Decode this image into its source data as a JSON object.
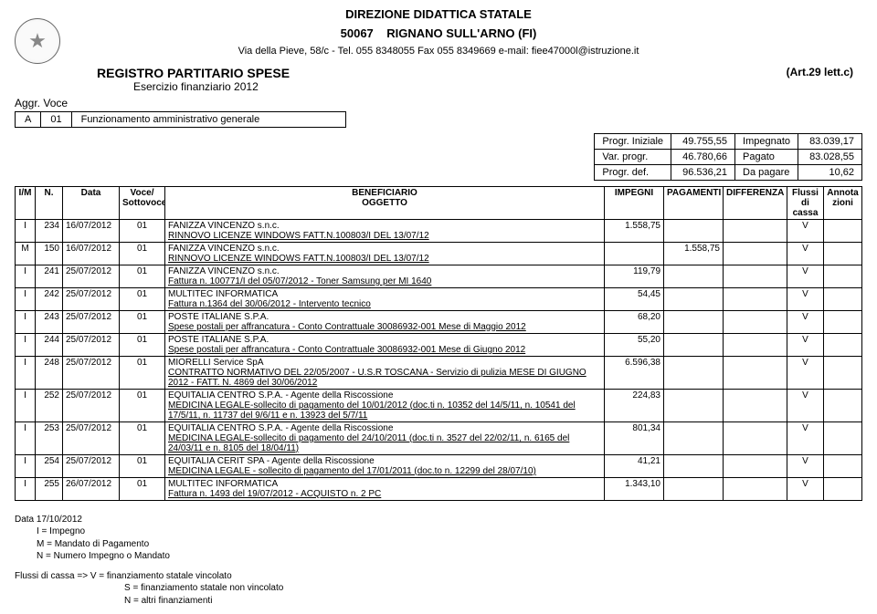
{
  "header": {
    "line1": "DIREZIONE DIDATTICA STATALE",
    "line2_code": "50067",
    "line2_place": "RIGNANO SULL'ARNO (FI)",
    "line3": "Via della Pieve, 58/c - Tel. 055 8348055 Fax 055 8349669 e-mail: fiee47000l@istruzione.it"
  },
  "registro": {
    "title": "REGISTRO PARTITARIO SPESE",
    "subtitle": "Esercizio finanziario 2012",
    "art": "(Art.29 lett.c)"
  },
  "aggr": {
    "label": "Aggr. Voce",
    "code_a": "A",
    "code_num": "01",
    "desc": "Funzionamento amministrativo generale"
  },
  "summary": {
    "rows": [
      {
        "l1": "Progr. Iniziale",
        "v1": "49.755,55",
        "l2": "Impegnato",
        "v2": "83.039,17"
      },
      {
        "l1": "Var. progr.",
        "v1": "46.780,66",
        "l2": "Pagato",
        "v2": "83.028,55"
      },
      {
        "l1": "Progr. def.",
        "v1": "96.536,21",
        "l2": "Da pagare",
        "v2": "10,62"
      }
    ]
  },
  "columns": {
    "im": "I/M",
    "n": "N.",
    "data": "Data",
    "voce": "Voce/\nSottovoce",
    "benef": "BENEFICIARIO\nOGGETTO",
    "imp": "IMPEGNI",
    "pag": "PAGAMENTI",
    "diff": "DIFFERENZA",
    "flussi": "Flussi di\ncassa",
    "annota": "Annota\nzioni"
  },
  "rows": [
    {
      "im": "I",
      "n": "234",
      "data": "16/07/2012",
      "voce": "01",
      "benef": "FANIZZA VINCENZO s.n.c.",
      "sub": "RINNOVO LICENZE WINDOWS FATT.N.100803/I DEL 13/07/12",
      "imp": "1.558,75",
      "pag": "",
      "diff": "",
      "flussi": "V"
    },
    {
      "im": "M",
      "n": "150",
      "data": "16/07/2012",
      "voce": "01",
      "benef": "FANIZZA VINCENZO s.n.c.",
      "sub": "RINNOVO LICENZE WINDOWS FATT.N.100803/I DEL 13/07/12",
      "imp": "",
      "pag": "1.558,75",
      "diff": "",
      "flussi": "V"
    },
    {
      "im": "I",
      "n": "241",
      "data": "25/07/2012",
      "voce": "01",
      "benef": "FANIZZA VINCENZO s.n.c.",
      "sub": "Fattura n. 100771/I del 05/07/2012 - Toner Samsung per MI 1640",
      "imp": "119,79",
      "pag": "",
      "diff": "",
      "flussi": "V"
    },
    {
      "im": "I",
      "n": "242",
      "data": "25/07/2012",
      "voce": "01",
      "benef": "MULTITEC INFORMATICA",
      "sub": "Fattura n.1364 del 30/06/2012 - Intervento tecnico",
      "imp": "54,45",
      "pag": "",
      "diff": "",
      "flussi": "V"
    },
    {
      "im": "I",
      "n": "243",
      "data": "25/07/2012",
      "voce": "01",
      "benef": "POSTE ITALIANE S.P.A.",
      "sub": "Spese postali per affrancatura - Conto Contrattuale 30086932-001 Mese di Maggio 2012",
      "imp": "68,20",
      "pag": "",
      "diff": "",
      "flussi": "V"
    },
    {
      "im": "I",
      "n": "244",
      "data": "25/07/2012",
      "voce": "01",
      "benef": "POSTE ITALIANE S.P.A.",
      "sub": "Spese postali per affrancatura - Conto Contrattuale 30086932-001 Mese di Giugno 2012",
      "imp": "55,20",
      "pag": "",
      "diff": "",
      "flussi": "V"
    },
    {
      "im": "I",
      "n": "248",
      "data": "25/07/2012",
      "voce": "01",
      "benef": "MIORELLI Service SpA",
      "sub": "CONTRATTO NORMATIVO DEL 22/05/2007 - U.S.R TOSCANA - Servizio di pulizia MESE DI GIUGNO 2012 - FATT. N. 4869 del 30/06/2012",
      "imp": "6.596,38",
      "pag": "",
      "diff": "",
      "flussi": "V"
    },
    {
      "im": "I",
      "n": "252",
      "data": "25/07/2012",
      "voce": "01",
      "benef": "EQUITALIA CENTRO S.P.A. - Agente della Riscossione",
      "sub": "MEDICINA LEGALE-sollecito di pagamento del 10/01/2012 (doc.ti n. 10352 del 14/5/11, n. 10541 del 17/5/11, n. 11737 del 9/6/11 e n. 13923 del 5/7/11",
      "imp": "224,83",
      "pag": "",
      "diff": "",
      "flussi": "V"
    },
    {
      "im": "I",
      "n": "253",
      "data": "25/07/2012",
      "voce": "01",
      "benef": "EQUITALIA CENTRO S.P.A. - Agente della Riscossione",
      "sub": "MEDICINA LEGALE-sollecito di pagamento del 24/10/2011 (doc.ti n. 3527 del 22/02/11, n. 6165 del 24/03/11 e n. 8105 del 18/04/11)",
      "imp": "801,34",
      "pag": "",
      "diff": "",
      "flussi": "V"
    },
    {
      "im": "I",
      "n": "254",
      "data": "25/07/2012",
      "voce": "01",
      "benef": "EQUITALIA CERIT SPA - Agente della Riscossione",
      "sub": "MEDICINA LEGALE - sollecito di pagamento del 17/01/2011 (doc.to n. 12299 del 28/07/10)",
      "imp": "41,21",
      "pag": "",
      "diff": "",
      "flussi": "V"
    },
    {
      "im": "I",
      "n": "255",
      "data": "26/07/2012",
      "voce": "01",
      "benef": "MULTITEC INFORMATICA",
      "sub": "Fattura n. 1493 del 19/07/2012 - ACQUISTO n. 2 PC",
      "imp": "1.343,10",
      "pag": "",
      "diff": "",
      "flussi": "V"
    }
  ],
  "footer": {
    "data_line": "Data 17/10/2012",
    "legend1": "I = Impegno",
    "legend2": "M = Mandato di Pagamento",
    "legend3": "N = Numero Impegno o Mandato",
    "flussi_label": "Flussi di cassa =>",
    "flussi_v": "V = finanziamento statale vincolato",
    "flussi_s": "S = finanziamento statale non vincolato",
    "flussi_n": "N = altri finanziamenti"
  }
}
